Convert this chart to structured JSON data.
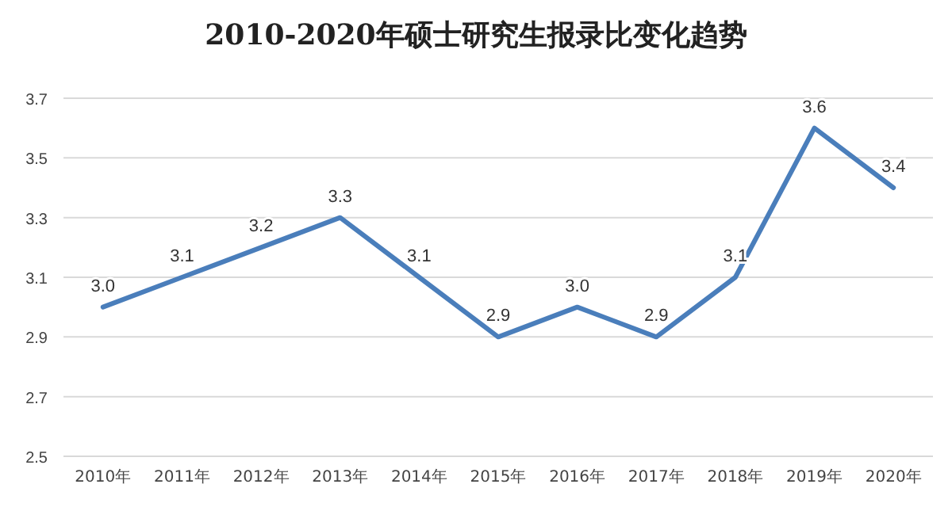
{
  "chart_data": {
    "type": "line",
    "title": "2010-2020年硕士研究生报录比变化趋势",
    "categories": [
      "2010年",
      "2011年",
      "2012年",
      "2013年",
      "2014年",
      "2015年",
      "2016年",
      "2017年",
      "2018年",
      "2019年",
      "2020年"
    ],
    "series": [
      {
        "color": "#4a7ebb",
        "values": [
          3.0,
          3.1,
          3.2,
          3.3,
          3.1,
          2.9,
          3.0,
          2.9,
          3.1,
          3.6,
          3.4
        ]
      }
    ],
    "value_labels": [
      "3.0",
      "3.1",
      "3.2",
      "3.3",
      "3.1",
      "2.9",
      "3.0",
      "2.9",
      "3.1",
      "3.6",
      "3.4"
    ],
    "ylim": [
      2.5,
      3.7
    ],
    "yticks": [
      2.5,
      2.7,
      2.9,
      3.1,
      3.3,
      3.5,
      3.7
    ],
    "grid": "y"
  }
}
